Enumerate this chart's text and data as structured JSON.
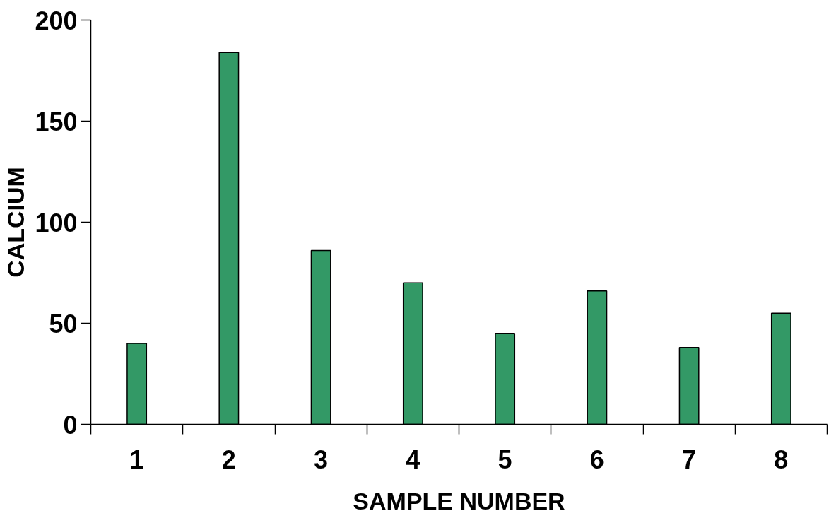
{
  "chart_data": {
    "type": "bar",
    "xlabel": "SAMPLE NUMBER",
    "ylabel": "CALCIUM",
    "categories": [
      "1",
      "2",
      "3",
      "4",
      "5",
      "6",
      "7",
      "8"
    ],
    "values": [
      40,
      184,
      86,
      70,
      45,
      66,
      38,
      55
    ],
    "color": "#339966",
    "ylim": [
      0,
      200
    ],
    "yticks": [
      0,
      50,
      100,
      150,
      200
    ],
    "grid": false
  }
}
